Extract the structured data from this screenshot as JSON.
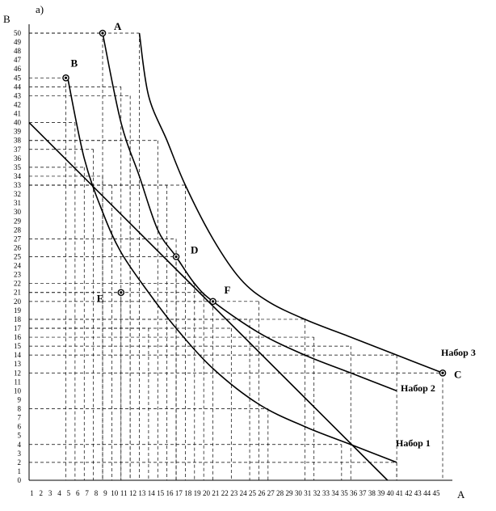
{
  "panel_label": "а)",
  "chart_data": {
    "type": "line",
    "xlabel": "A",
    "ylabel": "B",
    "xlim": [
      0,
      45
    ],
    "ylim": [
      0,
      50
    ],
    "x_ticks": [
      1,
      2,
      3,
      4,
      5,
      6,
      7,
      8,
      9,
      10,
      11,
      12,
      13,
      14,
      15,
      16,
      17,
      18,
      19,
      20,
      21,
      22,
      23,
      24,
      25,
      26,
      27,
      28,
      29,
      30,
      31,
      32,
      33,
      34,
      35,
      36,
      37,
      38,
      39,
      40,
      41,
      42,
      43,
      44,
      45
    ],
    "y_ticks": [
      0,
      1,
      2,
      3,
      4,
      5,
      6,
      7,
      8,
      9,
      10,
      11,
      12,
      13,
      14,
      15,
      16,
      17,
      18,
      19,
      20,
      21,
      22,
      23,
      24,
      25,
      26,
      27,
      28,
      29,
      30,
      31,
      32,
      33,
      34,
      35,
      36,
      37,
      38,
      39,
      40,
      41,
      42,
      43,
      44,
      45,
      46,
      47,
      48,
      49,
      50
    ],
    "series": [
      {
        "name": "Набор 1",
        "x": [
          4.2,
          6,
          8,
          10,
          13,
          16,
          20,
          25,
          30,
          35,
          40
        ],
        "y": [
          45,
          36,
          30,
          25.5,
          21,
          17,
          12.5,
          8.5,
          6,
          4,
          2
        ]
      },
      {
        "name": "Набор 2",
        "x": [
          8,
          10,
          12,
          14,
          16,
          18,
          20,
          25,
          30,
          35,
          40
        ],
        "y": [
          50,
          40,
          34,
          28,
          25,
          22,
          20,
          16.5,
          14,
          12,
          10
        ]
      },
      {
        "name": "Набор 3",
        "x": [
          12,
          13,
          15,
          17,
          20,
          23,
          26,
          30,
          35,
          40,
          45
        ],
        "y": [
          50,
          43,
          38,
          33,
          27,
          22.5,
          20,
          18,
          16,
          14,
          12
        ]
      },
      {
        "name": "",
        "x": [
          0,
          39
        ],
        "y": [
          40,
          0
        ]
      }
    ],
    "points": [
      {
        "label": "A",
        "x": 8,
        "y": 50
      },
      {
        "label": "B",
        "x": 4,
        "y": 45
      },
      {
        "label": "C",
        "x": 45,
        "y": 12
      },
      {
        "label": "D",
        "x": 16,
        "y": 25
      },
      {
        "label": "E",
        "x": 10,
        "y": 21
      },
      {
        "label": "F",
        "x": 20,
        "y": 20
      }
    ],
    "guides": [
      {
        "x": 4,
        "y": 45
      },
      {
        "x": 8,
        "y": 50
      },
      {
        "x": 10,
        "y": 44
      },
      {
        "x": 11,
        "y": 43
      },
      {
        "x": 12,
        "y": 50
      },
      {
        "x": 5,
        "y": 40
      },
      {
        "x": 7,
        "y": 37
      },
      {
        "x": 8,
        "y": 34
      },
      {
        "x": 9,
        "y": 33
      },
      {
        "x": 11,
        "y": 38
      },
      {
        "x": 14,
        "y": 38
      },
      {
        "x": 15,
        "y": 33
      },
      {
        "x": 16,
        "y": 27
      },
      {
        "x": 16,
        "y": 25
      },
      {
        "x": 17,
        "y": 33
      },
      {
        "x": 10,
        "y": 21
      },
      {
        "x": 19,
        "y": 21
      },
      {
        "x": 20,
        "y": 20
      },
      {
        "x": 24,
        "y": 18
      },
      {
        "x": 25,
        "y": 20
      },
      {
        "x": 30,
        "y": 18
      },
      {
        "x": 22,
        "y": 17
      },
      {
        "x": 31,
        "y": 16
      },
      {
        "x": 35,
        "y": 15
      },
      {
        "x": 40,
        "y": 14
      },
      {
        "x": 45,
        "y": 12
      },
      {
        "x": 26,
        "y": 8
      },
      {
        "x": 34,
        "y": 4
      },
      {
        "x": 40,
        "y": 2
      },
      {
        "x": 36,
        "y": 0
      },
      {
        "x": 18,
        "y": 22
      },
      {
        "x": 13,
        "y": 17
      },
      {
        "x": 6,
        "y": 35
      }
    ]
  }
}
